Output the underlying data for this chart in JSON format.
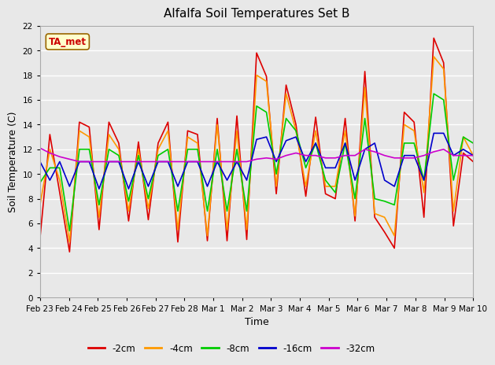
{
  "title": "Alfalfa Soil Temperatures Set B",
  "xlabel": "Time",
  "ylabel": "Soil Temperature (C)",
  "ylim": [
    0,
    22
  ],
  "yticks": [
    0,
    2,
    4,
    6,
    8,
    10,
    12,
    14,
    16,
    18,
    20,
    22
  ],
  "annotation_text": "TA_met",
  "annotation_color": "#cc0000",
  "annotation_bg": "#ffffcc",
  "annotation_border": "#996600",
  "series_labels": [
    "-2cm",
    "-4cm",
    "-8cm",
    "-16cm",
    "-32cm"
  ],
  "series_colors": [
    "#dd0000",
    "#ff9900",
    "#00cc00",
    "#0000cc",
    "#cc00cc"
  ],
  "x_tick_labels": [
    "Feb 23",
    "Feb 24",
    "Feb 25",
    "Feb 26",
    "Feb 27",
    "Feb 28",
    "Mar 1",
    "Mar 2",
    "Mar 3",
    "Mar 4",
    "Mar 5",
    "Mar 6",
    "Mar 7",
    "Mar 8",
    "Mar 9",
    "Mar 10"
  ],
  "background_color": "#e8e8e8",
  "plot_bg": "#e8e8e8",
  "grid_color": "#ffffff",
  "data_2cm": [
    4.8,
    13.2,
    8.5,
    3.7,
    14.2,
    13.8,
    5.5,
    14.2,
    12.5,
    6.2,
    12.6,
    6.3,
    12.5,
    14.2,
    4.5,
    13.5,
    13.2,
    4.6,
    14.5,
    4.6,
    14.7,
    4.7,
    19.8,
    17.9,
    8.4,
    17.2,
    14.0,
    8.2,
    14.6,
    8.4,
    8.0,
    14.5,
    6.2,
    18.3,
    6.5,
    5.3,
    4.0,
    15.0,
    14.2,
    6.5,
    21.0,
    19.0,
    5.8,
    11.7,
    11.0
  ],
  "data_4cm": [
    7.5,
    12.0,
    9.5,
    4.5,
    13.5,
    13.0,
    6.5,
    13.2,
    12.0,
    7.0,
    12.0,
    7.2,
    12.0,
    13.5,
    5.5,
    13.0,
    12.5,
    5.0,
    14.0,
    5.5,
    13.5,
    5.5,
    18.0,
    17.5,
    9.0,
    16.5,
    13.5,
    9.0,
    13.5,
    9.0,
    9.0,
    13.5,
    6.6,
    17.0,
    6.8,
    6.5,
    5.0,
    14.0,
    13.5,
    8.5,
    19.5,
    18.5,
    7.0,
    13.0,
    11.5
  ],
  "data_8cm": [
    9.3,
    10.5,
    10.5,
    5.4,
    12.0,
    12.0,
    7.5,
    12.0,
    11.5,
    7.8,
    11.5,
    8.0,
    11.5,
    12.0,
    7.0,
    12.0,
    12.0,
    7.0,
    12.0,
    7.0,
    12.0,
    7.0,
    15.5,
    15.0,
    10.0,
    14.5,
    13.5,
    10.5,
    12.5,
    9.5,
    8.5,
    12.5,
    8.0,
    14.5,
    8.0,
    7.8,
    7.5,
    12.5,
    12.5,
    9.5,
    16.5,
    16.0,
    9.5,
    13.0,
    12.5
  ],
  "data_16cm": [
    11.0,
    9.5,
    11.0,
    9.0,
    11.0,
    11.0,
    8.8,
    11.0,
    11.0,
    8.8,
    11.0,
    9.0,
    11.0,
    11.0,
    9.0,
    11.0,
    11.0,
    9.0,
    11.0,
    9.5,
    11.0,
    9.5,
    12.8,
    13.0,
    11.0,
    12.7,
    13.0,
    11.0,
    12.5,
    10.5,
    10.5,
    12.5,
    9.5,
    12.0,
    12.5,
    9.5,
    9.0,
    11.5,
    11.5,
    9.5,
    13.3,
    13.3,
    11.5,
    12.0,
    11.5
  ],
  "data_32cm": [
    12.1,
    11.7,
    11.4,
    11.2,
    11.0,
    11.0,
    11.0,
    11.0,
    11.0,
    11.0,
    11.0,
    11.0,
    11.0,
    11.0,
    11.0,
    11.0,
    11.0,
    11.0,
    11.0,
    11.0,
    11.0,
    11.0,
    11.2,
    11.3,
    11.2,
    11.5,
    11.7,
    11.5,
    11.5,
    11.3,
    11.3,
    11.5,
    11.5,
    12.0,
    11.8,
    11.5,
    11.3,
    11.3,
    11.3,
    11.5,
    11.8,
    12.0,
    11.5,
    11.5,
    11.5
  ]
}
